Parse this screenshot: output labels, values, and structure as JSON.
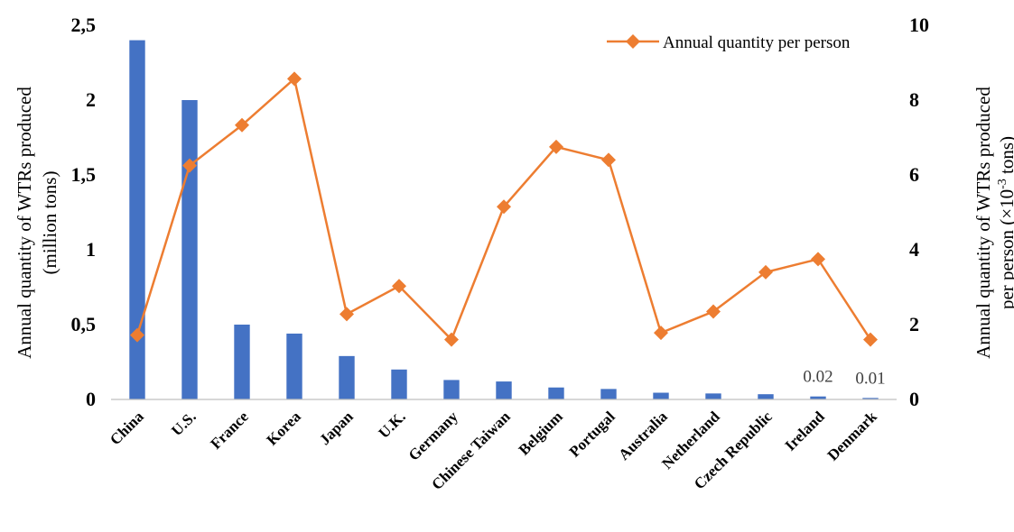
{
  "chart_data": {
    "type": "bar",
    "categories": [
      "China",
      "U.S.",
      "France",
      "Korea",
      "Japan",
      "U.K.",
      "Germany",
      "Chinese Taiwan",
      "Belgium",
      "Portugal",
      "Australia",
      "Netherland",
      "Czech Republic",
      "Ireland",
      "Denmark"
    ],
    "series": [
      {
        "type": "bar",
        "axis": "left",
        "color": "#4472C4",
        "values": [
          2.4,
          2.0,
          0.5,
          0.44,
          0.29,
          0.2,
          0.13,
          0.12,
          0.08,
          0.07,
          0.045,
          0.04,
          0.035,
          0.02,
          0.01
        ]
      },
      {
        "type": "line",
        "axis": "right",
        "name": "Annual quantity per person",
        "color": "#ED7D31",
        "marker": "diamond",
        "values": [
          1.72,
          6.25,
          7.33,
          8.57,
          2.28,
          3.03,
          1.6,
          5.15,
          6.75,
          6.4,
          1.78,
          2.35,
          3.4,
          3.75,
          1.6
        ]
      }
    ],
    "data_labels": [
      {
        "series": 0,
        "index": 13,
        "text": "0.02"
      },
      {
        "series": 0,
        "index": 14,
        "text": "0.01"
      }
    ],
    "ylabel_left": [
      "Annual quantity of WTRs produced",
      "(million tons)"
    ],
    "ylabel_right_line1": "Annual quantity of WTRs produced",
    "ylabel_right_line2_prefix": "per person (×10",
    "ylabel_right_line2_sup": "-3",
    "ylabel_right_line2_suffix": " tons)",
    "ylim_left": [
      0,
      2.5
    ],
    "ylim_right": [
      0,
      10
    ],
    "yticks_left": [
      "0",
      "0,5",
      "1",
      "1,5",
      "2",
      "2,5"
    ],
    "yticks_right": [
      "0",
      "2",
      "4",
      "6",
      "8",
      "10"
    ],
    "grid": false,
    "legend_position": "top-right"
  }
}
